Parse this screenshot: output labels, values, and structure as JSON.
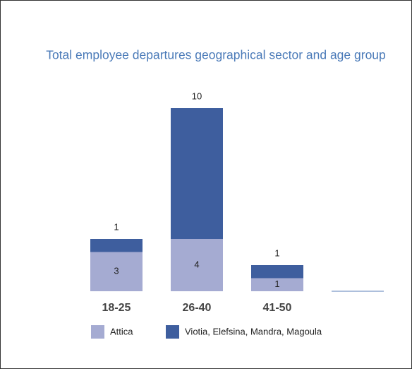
{
  "chart_data": {
    "type": "stacked_bar",
    "title": "Total employee departures geographical sector and age group",
    "categories": [
      "18-25",
      "26-40",
      "41-50",
      null
    ],
    "series": [
      {
        "name": "Attica",
        "color": "#a5abd2",
        "values": [
          3,
          4,
          1,
          null
        ]
      },
      {
        "name": "Viotia, Elefsina, Mandra, Magoula",
        "color": "#3e5e9e",
        "values": [
          1,
          10,
          1,
          null
        ]
      }
    ]
  }
}
